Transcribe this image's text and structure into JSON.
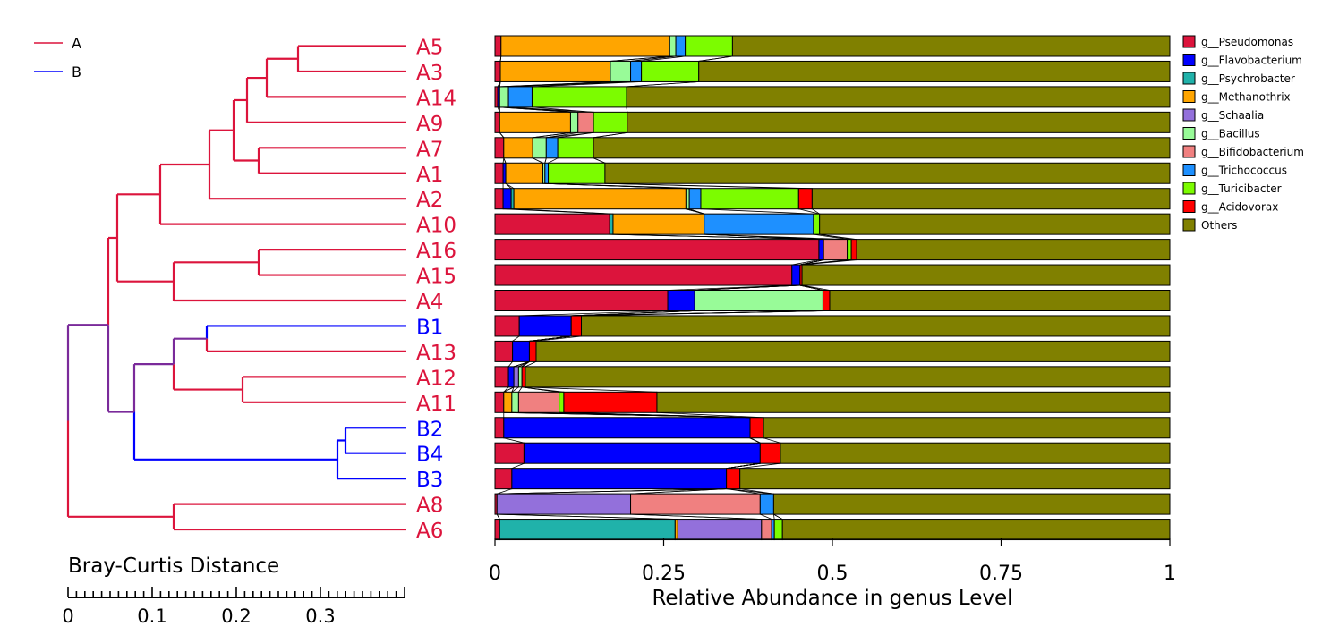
{
  "chart_data": {
    "type": "bar",
    "orientation": "horizontal",
    "stacked": true,
    "xlabel": "Relative Abundance in genus Level",
    "xlim": [
      0,
      1
    ],
    "x_ticks": [
      "0",
      "0.25",
      "0.5",
      "0.75",
      "1"
    ],
    "group_legend": [
      {
        "name": "A",
        "color": "#dc143c"
      },
      {
        "name": "B",
        "color": "#0000ff"
      }
    ],
    "tree_axis": {
      "title": "Bray-Curtis Distance",
      "ticks": [
        "0",
        "0.1",
        "0.2",
        "0.3"
      ],
      "max": 0.4
    },
    "samples": [
      {
        "name": "A5",
        "group": "A"
      },
      {
        "name": "A3",
        "group": "A"
      },
      {
        "name": "A14",
        "group": "A"
      },
      {
        "name": "A9",
        "group": "A"
      },
      {
        "name": "A7",
        "group": "A"
      },
      {
        "name": "A1",
        "group": "A"
      },
      {
        "name": "A2",
        "group": "A"
      },
      {
        "name": "A10",
        "group": "A"
      },
      {
        "name": "A16",
        "group": "A"
      },
      {
        "name": "A15",
        "group": "A"
      },
      {
        "name": "A4",
        "group": "A"
      },
      {
        "name": "B1",
        "group": "B"
      },
      {
        "name": "A13",
        "group": "A"
      },
      {
        "name": "A12",
        "group": "A"
      },
      {
        "name": "A11",
        "group": "A"
      },
      {
        "name": "B2",
        "group": "B"
      },
      {
        "name": "B4",
        "group": "B"
      },
      {
        "name": "B3",
        "group": "B"
      },
      {
        "name": "A8",
        "group": "A"
      },
      {
        "name": "A6",
        "group": "A"
      }
    ],
    "series": [
      {
        "name": "g__Pseudomonas",
        "color": "#dc143c",
        "values": [
          0.009,
          0.008,
          0.004,
          0.007,
          0.013,
          0.012,
          0.012,
          0.17,
          0.48,
          0.44,
          0.256,
          0.036,
          0.026,
          0.02,
          0.013,
          0.013,
          0.043,
          0.025,
          0.003,
          0.007
        ]
      },
      {
        "name": "g__Flavobacterium",
        "color": "#0000ff",
        "values": [
          0,
          0,
          0.003,
          0,
          0,
          0.004,
          0.012,
          0,
          0.007,
          0.012,
          0.04,
          0.077,
          0.025,
          0.008,
          0,
          0.365,
          0.35,
          0.318,
          0,
          0
        ]
      },
      {
        "name": "g__Psychrobacter",
        "color": "#20b2aa",
        "values": [
          0,
          0,
          0,
          0,
          0,
          0,
          0.004,
          0.005,
          0,
          0,
          0,
          0,
          0,
          0,
          0,
          0,
          0,
          0,
          0,
          0.26
        ]
      },
      {
        "name": "g__Methanothrix",
        "color": "#ffa500",
        "values": [
          0.25,
          0.163,
          0,
          0.105,
          0.043,
          0.055,
          0.255,
          0.135,
          0,
          0,
          0,
          0,
          0,
          0,
          0.012,
          0,
          0,
          0,
          0,
          0.004
        ]
      },
      {
        "name": "g__Schaalia",
        "color": "#9370db",
        "values": [
          0,
          0,
          0,
          0,
          0,
          0,
          0,
          0,
          0,
          0,
          0,
          0,
          0,
          0.007,
          0,
          0,
          0,
          0,
          0.198,
          0.124
        ]
      },
      {
        "name": "g__Bacillus",
        "color": "#98fb98",
        "values": [
          0.009,
          0.03,
          0.013,
          0.011,
          0.02,
          0.003,
          0.005,
          0,
          0,
          0,
          0.19,
          0,
          0,
          0.005,
          0.01,
          0,
          0,
          0,
          0,
          0
        ]
      },
      {
        "name": "g__Bifidobacterium",
        "color": "#f08080",
        "values": [
          0,
          0,
          0,
          0.023,
          0,
          0,
          0,
          0,
          0.035,
          0,
          0,
          0,
          0,
          0,
          0.06,
          0,
          0,
          0,
          0.192,
          0.015
        ]
      },
      {
        "name": "g__Trichococcus",
        "color": "#1e90ff",
        "values": [
          0.014,
          0.016,
          0.035,
          0,
          0.017,
          0.005,
          0.017,
          0.162,
          0,
          0,
          0,
          0,
          0,
          0,
          0,
          0,
          0,
          0,
          0.02,
          0.004
        ]
      },
      {
        "name": "g__Turicibacter",
        "color": "#7cfc00",
        "values": [
          0.07,
          0.085,
          0.14,
          0.05,
          0.053,
          0.084,
          0.145,
          0.009,
          0.006,
          0,
          0,
          0,
          0,
          0,
          0.007,
          0,
          0,
          0,
          0,
          0.012
        ]
      },
      {
        "name": "g__Acidovorax",
        "color": "#ff0000",
        "values": [
          0,
          0,
          0,
          0,
          0,
          0,
          0.02,
          0,
          0.008,
          0.003,
          0.01,
          0.015,
          0.01,
          0.005,
          0.138,
          0.02,
          0.03,
          0.02,
          0,
          0
        ]
      },
      {
        "name": "Others",
        "color": "#808000",
        "values": [
          0.648,
          0.698,
          0.805,
          0.804,
          0.854,
          0.837,
          0.53,
          0.519,
          0.464,
          0.545,
          0.504,
          0.872,
          0.939,
          0.955,
          0.76,
          0.602,
          0.577,
          0.637,
          0.587,
          0.574
        ]
      }
    ]
  }
}
